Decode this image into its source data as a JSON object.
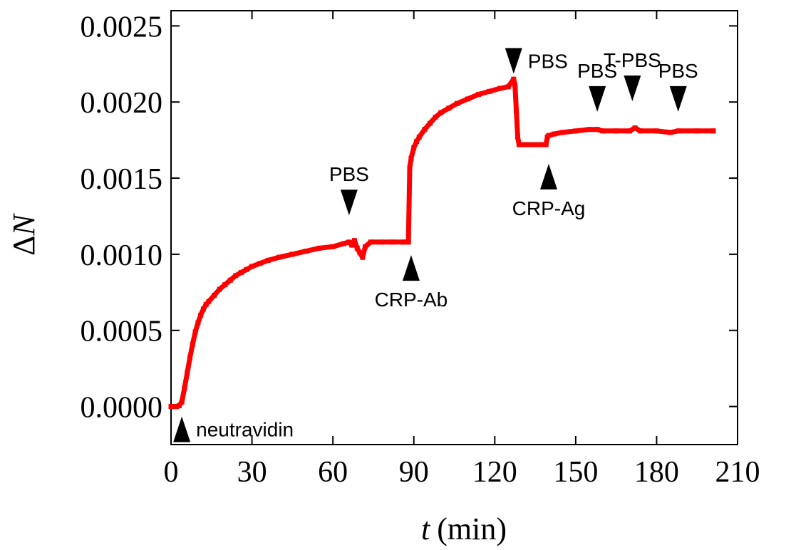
{
  "chart_data": {
    "type": "line",
    "xlabel_var": "t",
    "xlabel_unit": "(min)",
    "ylabel_prefix": "Δ",
    "ylabel_var": "N",
    "xlim": [
      0,
      210
    ],
    "ylim": [
      -0.00025,
      0.0026
    ],
    "xticks": [
      0,
      30,
      60,
      90,
      120,
      150,
      180,
      210
    ],
    "xtick_labels": [
      "0",
      "30",
      "60",
      "90",
      "120",
      "150",
      "180",
      "210"
    ],
    "yticks": [
      0.0,
      0.0005,
      0.001,
      0.0015,
      0.002,
      0.0025
    ],
    "ytick_labels": [
      "0.0000",
      "0.0005",
      "0.0010",
      "0.0015",
      "0.0020",
      "0.0025"
    ],
    "grid": false,
    "legend": "none",
    "series_color": "#ff0000",
    "series": [
      {
        "points": [
          [
            0,
            0.0
          ],
          [
            1,
            0.0
          ],
          [
            2,
            0.0
          ],
          [
            3,
            5e-06
          ],
          [
            4,
            3e-05
          ],
          [
            5,
            0.00012
          ],
          [
            6,
            0.00022
          ],
          [
            7,
            0.00032
          ],
          [
            8,
            0.00041
          ],
          [
            9,
            0.00049
          ],
          [
            10,
            0.00055
          ],
          [
            11,
            0.0006
          ],
          [
            12,
            0.00064
          ],
          [
            13,
            0.00067
          ],
          [
            14,
            0.00069
          ],
          [
            16,
            0.00073
          ],
          [
            18,
            0.00077
          ],
          [
            20,
            0.0008
          ],
          [
            22,
            0.00083
          ],
          [
            24,
            0.00086
          ],
          [
            26,
            0.00088
          ],
          [
            28,
            0.0009
          ],
          [
            30,
            0.00092
          ],
          [
            33,
            0.00094
          ],
          [
            36,
            0.00096
          ],
          [
            40,
            0.00098
          ],
          [
            45,
            0.001
          ],
          [
            50,
            0.00102
          ],
          [
            55,
            0.00104
          ],
          [
            60,
            0.00105
          ],
          [
            64,
            0.00107
          ],
          [
            66,
            0.00108
          ],
          [
            67,
            0.00106
          ],
          [
            68,
            0.00109
          ],
          [
            69,
            0.00104
          ],
          [
            70,
            0.00101
          ],
          [
            71,
            0.00098
          ],
          [
            72,
            0.00105
          ],
          [
            74,
            0.00108
          ],
          [
            78,
            0.00108
          ],
          [
            82,
            0.00108
          ],
          [
            86,
            0.00108
          ],
          [
            88,
            0.00108
          ],
          [
            88.5,
            0.00157
          ],
          [
            89,
            0.00163
          ],
          [
            90,
            0.0017
          ],
          [
            91,
            0.00174
          ],
          [
            92,
            0.00177
          ],
          [
            94,
            0.00182
          ],
          [
            96,
            0.00186
          ],
          [
            98,
            0.0019
          ],
          [
            100,
            0.00193
          ],
          [
            103,
            0.00196
          ],
          [
            106,
            0.00199
          ],
          [
            110,
            0.00202
          ],
          [
            114,
            0.00205
          ],
          [
            118,
            0.00207
          ],
          [
            122,
            0.00209
          ],
          [
            125,
            0.0021
          ],
          [
            127,
            0.00215
          ],
          [
            127.5,
            0.00211
          ],
          [
            128,
            0.00194
          ],
          [
            128.5,
            0.00177
          ],
          [
            129,
            0.00172
          ],
          [
            132,
            0.00172
          ],
          [
            135,
            0.00172
          ],
          [
            139,
            0.00172
          ],
          [
            139.5,
            0.00177
          ],
          [
            140,
            0.00178
          ],
          [
            142,
            0.00179
          ],
          [
            145,
            0.0018
          ],
          [
            150,
            0.00181
          ],
          [
            155,
            0.00182
          ],
          [
            158,
            0.00182
          ],
          [
            160,
            0.00181
          ],
          [
            165,
            0.00181
          ],
          [
            170,
            0.00181
          ],
          [
            172,
            0.00183
          ],
          [
            174,
            0.00181
          ],
          [
            180,
            0.00181
          ],
          [
            185,
            0.0018
          ],
          [
            188,
            0.00181
          ],
          [
            195,
            0.00181
          ],
          [
            201,
            0.00181
          ]
        ]
      }
    ],
    "annotations": [
      {
        "label": "neutravidin",
        "x": 4,
        "y": -0.00015,
        "arrow": "up",
        "text_pos": "right"
      },
      {
        "label": "PBS",
        "x": 66,
        "y": 0.00134,
        "arrow": "down",
        "text_pos": "above"
      },
      {
        "label": "CRP-Ab",
        "x": 89,
        "y": 0.00091,
        "arrow": "up",
        "text_pos": "below"
      },
      {
        "label": "PBS",
        "x": 127,
        "y": 0.00227,
        "arrow": "down",
        "text_pos": "right"
      },
      {
        "label": "CRP-Ag",
        "x": 140,
        "y": 0.00151,
        "arrow": "up",
        "text_pos": "below"
      },
      {
        "label": "PBS",
        "x": 158,
        "y": 0.00202,
        "arrow": "down",
        "text_pos": "above"
      },
      {
        "label": "T-PBS",
        "x": 171,
        "y": 0.00209,
        "arrow": "down",
        "text_pos": "above"
      },
      {
        "label": "PBS",
        "x": 188,
        "y": 0.00202,
        "arrow": "down",
        "text_pos": "above"
      }
    ]
  }
}
